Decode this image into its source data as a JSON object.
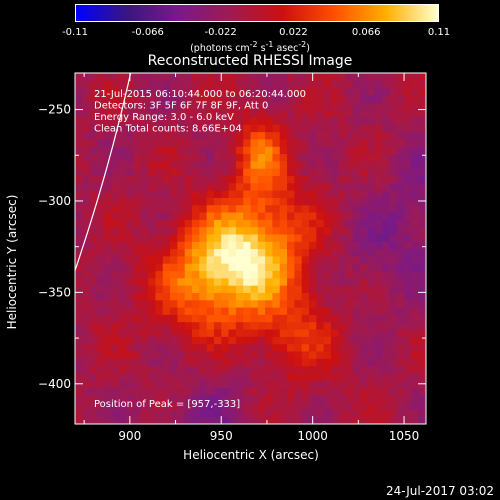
{
  "colorbar": {
    "ticks": [
      "-0.11",
      "-0.066",
      "-0.022",
      "0.022",
      "0.066",
      "0.11"
    ],
    "unit_html": "(photons cm<sup>-2</sup> s<sup>-1</sup> asec<sup>-2</sup>)"
  },
  "chart_data": {
    "type": "heatmap",
    "title": "Reconstructed RHESSI Image",
    "xlabel": "Heliocentric X (arcsec)",
    "ylabel": "Heliocentric Y (arcsec)",
    "xlim": [
      870,
      1062
    ],
    "ylim": [
      -422,
      -230
    ],
    "zlim": [
      -0.11,
      0.11
    ],
    "xticks": [
      900,
      950,
      1000,
      1050
    ],
    "yticks": [
      -250,
      -300,
      -350,
      -400
    ],
    "peak": [
      957,
      -333
    ],
    "annotations": [
      "21-Jul-2015 06:10:44.000 to 06:20:44.000",
      "Detectors: 3F 5F 6F 7F 8F 9F, Att 0",
      "Energy Range: 3.0 - 6.0 keV",
      "Clean    Total counts: 8.66E+04"
    ],
    "peak_label": "Position of Peak = [957,-333]",
    "colormap_stops": [
      "#0000ff",
      "#3a1680",
      "#7a1a88",
      "#a01a50",
      "#cc1010",
      "#ff5000",
      "#ffb000",
      "#ffffd0"
    ]
  },
  "footer_date": "24-Jul-2017 03:02"
}
